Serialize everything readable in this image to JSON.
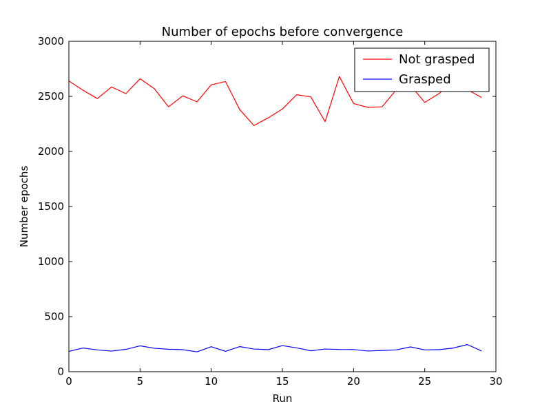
{
  "chart_data": {
    "type": "line",
    "title": "Number of epochs before convergence",
    "xlabel": "Run",
    "ylabel": "Number epochs",
    "xlim": [
      0,
      30
    ],
    "ylim": [
      0,
      3000
    ],
    "xticks": [
      0,
      5,
      10,
      15,
      20,
      25,
      30
    ],
    "yticks": [
      0,
      500,
      1000,
      1500,
      2000,
      2500,
      3000
    ],
    "xtick_labels": [
      "0",
      "5",
      "10",
      "15",
      "20",
      "25",
      "30"
    ],
    "ytick_labels": [
      "0",
      "500",
      "1000",
      "1500",
      "2000",
      "2500",
      "3000"
    ],
    "grid": false,
    "legend_position": "top-right",
    "x": [
      0,
      1,
      2,
      3,
      4,
      5,
      6,
      7,
      8,
      9,
      10,
      11,
      12,
      13,
      14,
      15,
      16,
      17,
      18,
      19,
      20,
      21,
      22,
      23,
      24,
      25,
      26,
      27,
      28,
      29
    ],
    "series": [
      {
        "name": "Not grasped",
        "color": "#ff0000",
        "values": [
          2640,
          2555,
          2480,
          2585,
          2525,
          2660,
          2570,
          2405,
          2505,
          2450,
          2605,
          2635,
          2380,
          2235,
          2305,
          2385,
          2515,
          2495,
          2270,
          2680,
          2435,
          2400,
          2405,
          2560,
          2600,
          2445,
          2525,
          2640,
          2560,
          2490
        ]
      },
      {
        "name": "Grasped",
        "color": "#0000ff",
        "values": [
          185,
          215,
          198,
          187,
          203,
          235,
          213,
          204,
          200,
          180,
          227,
          185,
          228,
          206,
          200,
          237,
          216,
          190,
          206,
          202,
          201,
          188,
          193,
          198,
          225,
          198,
          200,
          215,
          246,
          188
        ]
      }
    ]
  }
}
